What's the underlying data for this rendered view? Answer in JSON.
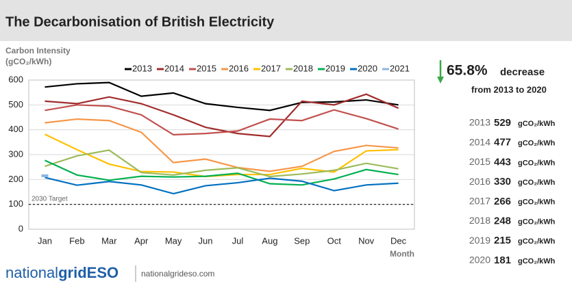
{
  "chart_data": {
    "type": "line",
    "title": "The Decarbonisation of British Electricity",
    "y_label_lines": [
      "Carbon Intensity",
      "(gCO₂/kWh)"
    ],
    "x_label": "Month",
    "categories": [
      "Jan",
      "Feb",
      "Mar",
      "Apr",
      "May",
      "Jun",
      "Jul",
      "Aug",
      "Sep",
      "Oct",
      "Nov",
      "Dec"
    ],
    "ylim": [
      0,
      600
    ],
    "yticks": [
      0,
      100,
      200,
      300,
      400,
      500,
      600
    ],
    "grid": true,
    "target": {
      "value": 100,
      "label": "2030 Target"
    },
    "series": [
      {
        "name": "2013",
        "color": "#000000",
        "values": [
          572,
          585,
          590,
          535,
          548,
          505,
          490,
          478,
          510,
          512,
          520,
          500
        ]
      },
      {
        "name": "2014",
        "color": "#a02b2b",
        "values": [
          515,
          505,
          532,
          505,
          460,
          410,
          385,
          373,
          515,
          500,
          543,
          487
        ]
      },
      {
        "name": "2015",
        "color": "#c0504d",
        "values": [
          478,
          500,
          495,
          460,
          380,
          385,
          395,
          443,
          437,
          480,
          445,
          403
        ]
      },
      {
        "name": "2016",
        "color": "#f79646",
        "values": [
          428,
          443,
          437,
          390,
          268,
          282,
          248,
          233,
          253,
          313,
          337,
          327
        ]
      },
      {
        "name": "2017",
        "color": "#ffc000",
        "values": [
          382,
          320,
          262,
          232,
          230,
          212,
          220,
          220,
          245,
          230,
          315,
          320
        ]
      },
      {
        "name": "2018",
        "color": "#9bbb59",
        "values": [
          253,
          295,
          318,
          228,
          218,
          237,
          247,
          212,
          222,
          237,
          265,
          243
        ]
      },
      {
        "name": "2019",
        "color": "#00b050",
        "values": [
          277,
          218,
          197,
          213,
          210,
          213,
          225,
          183,
          178,
          202,
          240,
          220
        ]
      },
      {
        "name": "2020",
        "color": "#0070c0",
        "values": [
          208,
          177,
          192,
          178,
          143,
          175,
          187,
          205,
          193,
          155,
          178,
          185
        ]
      },
      {
        "name": "2021",
        "color": "#8db4e2",
        "values": [
          215,
          null,
          null,
          null,
          null,
          null,
          null,
          null,
          null,
          null,
          null,
          null
        ]
      }
    ]
  },
  "summary": {
    "headline": "65.8%",
    "headline_word": "decrease",
    "subtitle": "from 2013 to 2020",
    "years": [
      "2013",
      "2014",
      "2015",
      "2016",
      "2017",
      "2018",
      "2019",
      "2020"
    ],
    "values": [
      529,
      477,
      443,
      330,
      266,
      248,
      215,
      181
    ],
    "unit": "gCO₂/kWh"
  },
  "footer": {
    "brand_light": "national",
    "brand_bold": "grid",
    "brand_eso": "ESO",
    "url": "nationalgrideso.com"
  }
}
